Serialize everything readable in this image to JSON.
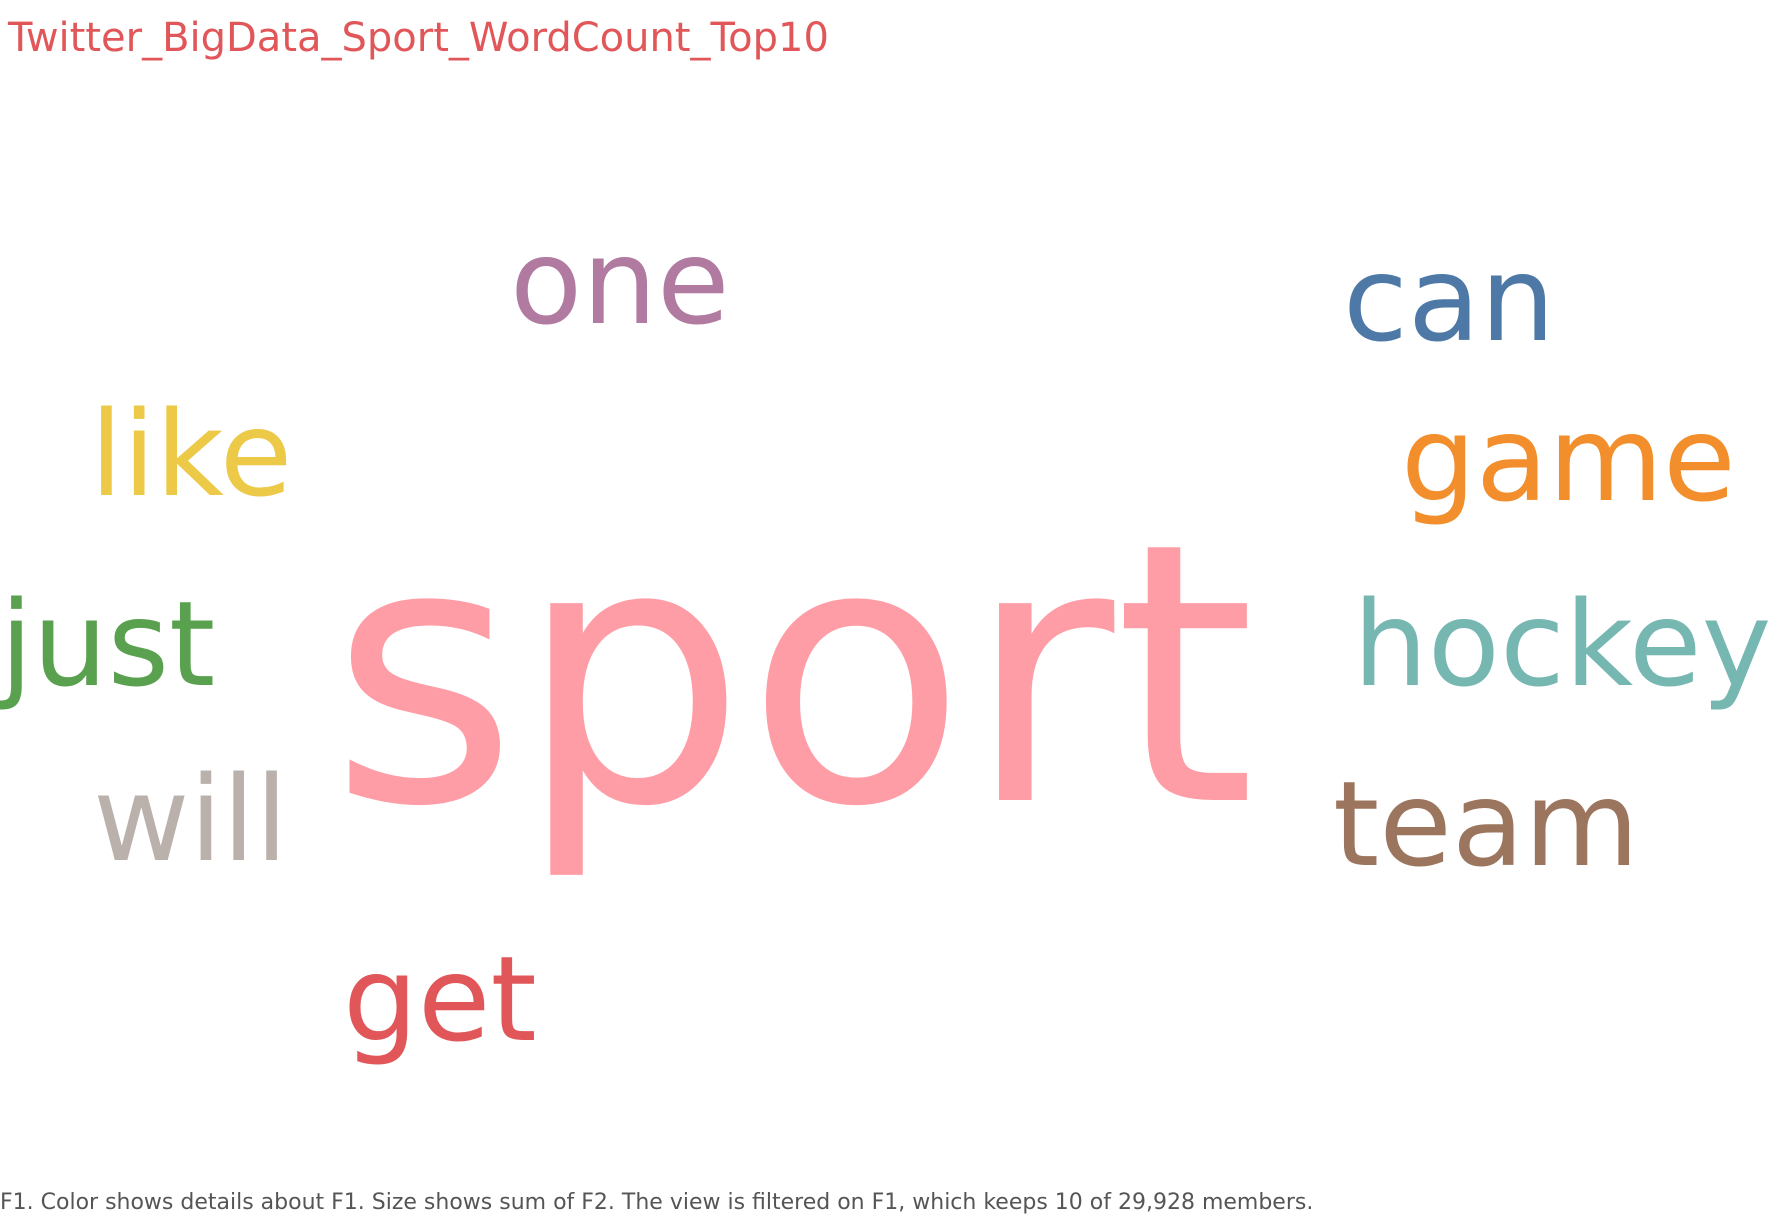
{
  "title": "Twitter_BigData_Sport_WordCount_Top10",
  "caption": "F1.  Color shows details about F1.  Size shows sum of F2. The view is filtered on F1, which keeps 10 of 29,928 members.",
  "chart_data": {
    "type": "wordcloud",
    "title": "Twitter_BigData_Sport_WordCount_Top10",
    "size_field": "F2",
    "color_field": "F1",
    "words": [
      {
        "text": "sport",
        "color": "#ff9da7"
      },
      {
        "text": "can",
        "color": "#4e79a7"
      },
      {
        "text": "hockey",
        "color": "#76b7b2"
      },
      {
        "text": "team",
        "color": "#9c755f"
      },
      {
        "text": "game",
        "color": "#f28e2b"
      },
      {
        "text": "just",
        "color": "#59a14f"
      },
      {
        "text": "like",
        "color": "#edc948"
      },
      {
        "text": "one",
        "color": "#b07aa1"
      },
      {
        "text": "will",
        "color": "#bab0ac"
      },
      {
        "text": "get",
        "color": "#e15759"
      }
    ]
  }
}
